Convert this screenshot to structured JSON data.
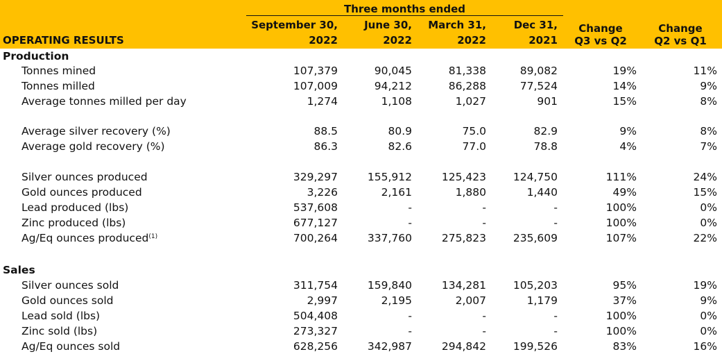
{
  "header": {
    "group_label": "Three months ended",
    "title": "OPERATING RESULTS",
    "columns": [
      {
        "line1": "September 30,",
        "line2": "2022"
      },
      {
        "line1": "June 30,",
        "line2": "2022"
      },
      {
        "line1": "March 31,",
        "line2": "2022"
      },
      {
        "line1": "Dec 31,",
        "line2": "2021"
      }
    ],
    "change1": {
      "line1": "Change",
      "line2": "Q3 vs Q2"
    },
    "change2": {
      "line1": "Change",
      "line2": "Q2 vs Q1"
    }
  },
  "production": {
    "title": "Production",
    "rows": [
      {
        "label": "Tonnes mined",
        "v": [
          "107,379",
          "90,045",
          "81,338",
          "89,082"
        ],
        "ch1": "19%",
        "ch2": "11%"
      },
      {
        "label": "Tonnes milled",
        "v": [
          "107,009",
          "94,212",
          "86,288",
          "77,524"
        ],
        "ch1": "14%",
        "ch2": "9%"
      },
      {
        "label": "Average tonnes milled per day",
        "v": [
          "1,274",
          "1,108",
          "1,027",
          "901"
        ],
        "ch1": "15%",
        "ch2": "8%"
      },
      {
        "label": "Average silver recovery (%)",
        "v": [
          "88.5",
          "80.9",
          "75.0",
          "82.9"
        ],
        "ch1": "9%",
        "ch2": "8%"
      },
      {
        "label": "Average gold recovery (%)",
        "v": [
          "86.3",
          "82.6",
          "77.0",
          "78.8"
        ],
        "ch1": "4%",
        "ch2": "7%"
      },
      {
        "label": "Silver ounces produced",
        "v": [
          "329,297",
          "155,912",
          "125,423",
          "124,750"
        ],
        "ch1": "111%",
        "ch2": "24%"
      },
      {
        "label": "Gold ounces produced",
        "v": [
          "3,226",
          "2,161",
          "1,880",
          "1,440"
        ],
        "ch1": "49%",
        "ch2": "15%"
      },
      {
        "label": "Lead produced (lbs)",
        "v": [
          "537,608",
          "-",
          "-",
          "-"
        ],
        "ch1": "100%",
        "ch2": "0%"
      },
      {
        "label": "Zinc produced  (lbs)",
        "v": [
          "677,127",
          "-",
          "-",
          "-"
        ],
        "ch1": "100%",
        "ch2": "0%"
      },
      {
        "label": "Ag/Eq ounces produced",
        "sup": "(1)",
        "v": [
          "700,264",
          "337,760",
          "275,823",
          "235,609"
        ],
        "ch1": "107%",
        "ch2": "22%"
      }
    ]
  },
  "sales": {
    "title": "Sales",
    "rows": [
      {
        "label": "Silver ounces sold",
        "v": [
          "311,754",
          "159,840",
          "134,281",
          "105,203"
        ],
        "ch1": "95%",
        "ch2": "19%"
      },
      {
        "label": "Gold ounces sold",
        "v": [
          "2,997",
          "2,195",
          "2,007",
          "1,179"
        ],
        "ch1": "37%",
        "ch2": "9%"
      },
      {
        "label": "Lead sold  (lbs)",
        "v": [
          "504,408",
          "-",
          "-",
          "-"
        ],
        "ch1": "100%",
        "ch2": "0%"
      },
      {
        "label": "Zinc sold  (lbs)",
        "v": [
          "273,327",
          "-",
          "-",
          "-"
        ],
        "ch1": "100%",
        "ch2": "0%"
      },
      {
        "label": "Ag/Eq ounces sold",
        "v": [
          "628,256",
          "342,987",
          "294,842",
          "199,526"
        ],
        "ch1": "83%",
        "ch2": "16%"
      }
    ]
  }
}
